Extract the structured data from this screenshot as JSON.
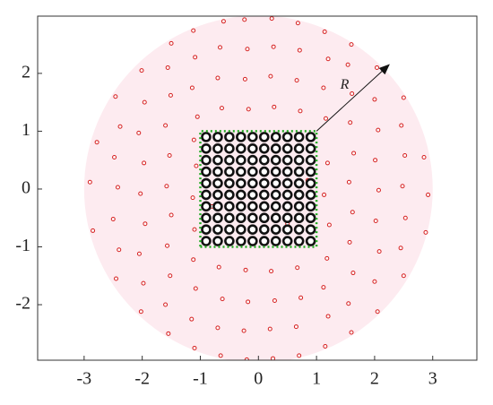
{
  "chart_data": {
    "type": "scatter",
    "xlim": [
      -3.8,
      3.76
    ],
    "ylim": [
      -2.96,
      2.99
    ],
    "xticks": [
      -3,
      -2,
      -1,
      0,
      1,
      2,
      3
    ],
    "yticks": [
      -2,
      -1,
      0,
      1,
      2
    ],
    "region_radius": 3,
    "region_color": "#fdebf0",
    "series": [
      {
        "color": "#d62020",
        "marker": "small",
        "x": [
          -2.85,
          -2.9,
          -2.78,
          -2.45,
          -2.4,
          -2.5,
          -2.42,
          -2.48,
          -2.38,
          -2.46,
          -2.02,
          -1.98,
          -2.05,
          -1.95,
          -2.03,
          -1.97,
          -2.06,
          -1.96,
          -2.01,
          -1.55,
          -1.6,
          -1.52,
          -1.57,
          -1.5,
          -1.58,
          -1.53,
          -1.6,
          -1.51,
          -1.56,
          -1.5,
          -1.1,
          -1.15,
          -1.08,
          -1.12,
          -1.05,
          -1.14,
          -1.09,
          -1.12,
          -1.1,
          -1.13,
          -1.07,
          -1.11,
          -0.65,
          -0.7,
          -0.62,
          -0.68,
          -0.63,
          -0.7,
          -0.66,
          -0.6,
          -0.2,
          -0.25,
          -0.18,
          -0.22,
          -0.17,
          -0.23,
          -0.19,
          -0.24,
          0.25,
          0.2,
          0.28,
          0.22,
          0.27,
          0.21,
          0.26,
          0.23,
          0.7,
          0.65,
          0.73,
          0.67,
          0.72,
          0.66,
          0.71,
          0.68,
          1.15,
          1.2,
          1.12,
          1.18,
          1.22,
          1.13,
          1.19,
          1.16,
          1.12,
          1.2,
          1.14,
          1.6,
          1.55,
          1.63,
          1.57,
          1.62,
          1.56,
          1.64,
          1.58,
          1.61,
          1.54,
          1.6,
          2.05,
          2.0,
          2.08,
          2.02,
          2.07,
          2.01,
          2.06,
          2.0,
          2.04,
          2.5,
          2.45,
          2.53,
          2.48,
          2.52,
          2.46,
          2.5,
          2.88,
          2.92,
          2.85,
          -0.8,
          0.1,
          0.5,
          -0.35,
          0.85
        ],
        "y": [
          -0.72,
          0.12,
          0.81,
          -1.55,
          -1.05,
          -0.52,
          0.03,
          0.55,
          1.08,
          1.6,
          -2.12,
          -1.63,
          -1.12,
          -0.6,
          -0.08,
          0.45,
          0.97,
          1.5,
          2.05,
          -2.5,
          -2.0,
          -1.5,
          -0.98,
          -0.45,
          0.05,
          0.58,
          1.1,
          1.62,
          2.1,
          2.52,
          -2.75,
          -2.25,
          -1.72,
          -1.22,
          1.25,
          1.75,
          2.28,
          2.74,
          -0.7,
          -0.15,
          0.4,
          0.85,
          -2.88,
          -2.4,
          -1.9,
          -1.35,
          1.4,
          1.92,
          2.45,
          2.9,
          -2.95,
          -2.45,
          -1.95,
          -1.4,
          1.38,
          1.9,
          2.42,
          2.93,
          -2.93,
          -2.42,
          -1.93,
          -1.42,
          1.42,
          1.95,
          2.46,
          2.95,
          -2.88,
          -2.38,
          -1.88,
          -1.36,
          1.35,
          1.88,
          2.4,
          2.87,
          -2.72,
          -2.2,
          -1.7,
          -1.2,
          -0.62,
          -0.1,
          0.45,
          1.22,
          1.75,
          2.25,
          2.72,
          -2.48,
          -1.98,
          -1.45,
          -0.92,
          -0.4,
          0.12,
          0.62,
          1.15,
          1.65,
          2.15,
          2.5,
          -2.12,
          -1.6,
          -1.08,
          -0.55,
          -0.02,
          0.5,
          1.02,
          1.55,
          2.1,
          -1.5,
          -1.02,
          -0.5,
          0.05,
          0.58,
          1.1,
          1.58,
          -0.75,
          -0.1,
          0.55,
          -0.3,
          0.3,
          -0.6,
          0.7,
          0.15
        ]
      },
      {
        "color": "#111111",
        "marker": "ring",
        "x": [
          -0.9,
          -0.7,
          -0.5,
          -0.3,
          -0.1,
          0.1,
          0.3,
          0.5,
          0.7,
          0.9,
          -0.9,
          -0.7,
          -0.5,
          -0.3,
          -0.1,
          0.1,
          0.3,
          0.5,
          0.7,
          0.9,
          -0.9,
          -0.7,
          -0.5,
          -0.3,
          -0.1,
          0.1,
          0.3,
          0.5,
          0.7,
          0.9,
          -0.9,
          -0.7,
          -0.5,
          -0.3,
          -0.1,
          0.1,
          0.3,
          0.5,
          0.7,
          0.9,
          -0.9,
          -0.7,
          -0.5,
          -0.3,
          -0.1,
          0.1,
          0.3,
          0.5,
          0.7,
          0.9,
          -0.9,
          -0.7,
          -0.5,
          -0.3,
          -0.1,
          0.1,
          0.3,
          0.5,
          0.7,
          0.9,
          -0.9,
          -0.7,
          -0.5,
          -0.3,
          -0.1,
          0.1,
          0.3,
          0.5,
          0.7,
          0.9,
          -0.9,
          -0.7,
          -0.5,
          -0.3,
          -0.1,
          0.1,
          0.3,
          0.5,
          0.7,
          0.9,
          -0.9,
          -0.7,
          -0.5,
          -0.3,
          -0.1,
          0.1,
          0.3,
          0.5,
          0.7,
          0.9,
          -0.9,
          -0.7,
          -0.5,
          -0.3,
          -0.1,
          0.1,
          0.3,
          0.5,
          0.7,
          0.9
        ],
        "y": [
          -0.9,
          -0.9,
          -0.9,
          -0.9,
          -0.9,
          -0.9,
          -0.9,
          -0.9,
          -0.9,
          -0.9,
          -0.7,
          -0.7,
          -0.7,
          -0.7,
          -0.7,
          -0.7,
          -0.7,
          -0.7,
          -0.7,
          -0.7,
          -0.5,
          -0.5,
          -0.5,
          -0.5,
          -0.5,
          -0.5,
          -0.5,
          -0.5,
          -0.5,
          -0.5,
          -0.3,
          -0.3,
          -0.3,
          -0.3,
          -0.3,
          -0.3,
          -0.3,
          -0.3,
          -0.3,
          -0.3,
          -0.1,
          -0.1,
          -0.1,
          -0.1,
          -0.1,
          -0.1,
          -0.1,
          -0.1,
          -0.1,
          -0.1,
          0.1,
          0.1,
          0.1,
          0.1,
          0.1,
          0.1,
          0.1,
          0.1,
          0.1,
          0.1,
          0.3,
          0.3,
          0.3,
          0.3,
          0.3,
          0.3,
          0.3,
          0.3,
          0.3,
          0.3,
          0.5,
          0.5,
          0.5,
          0.5,
          0.5,
          0.5,
          0.5,
          0.5,
          0.5,
          0.5,
          0.7,
          0.7,
          0.7,
          0.7,
          0.7,
          0.7,
          0.7,
          0.7,
          0.7,
          0.7,
          0.9,
          0.9,
          0.9,
          0.9,
          0.9,
          0.9,
          0.9,
          0.9,
          0.9,
          0.9
        ]
      },
      {
        "color": "#22aa22",
        "marker": "dotted-line",
        "x": [
          -1,
          1,
          1,
          -1,
          -1
        ],
        "y": [
          -1,
          -1,
          1,
          1,
          -1
        ]
      }
    ],
    "annotations": [
      {
        "text": "R",
        "x": [
          1,
          2.25
        ],
        "y": [
          1,
          2.15
        ]
      }
    ]
  }
}
